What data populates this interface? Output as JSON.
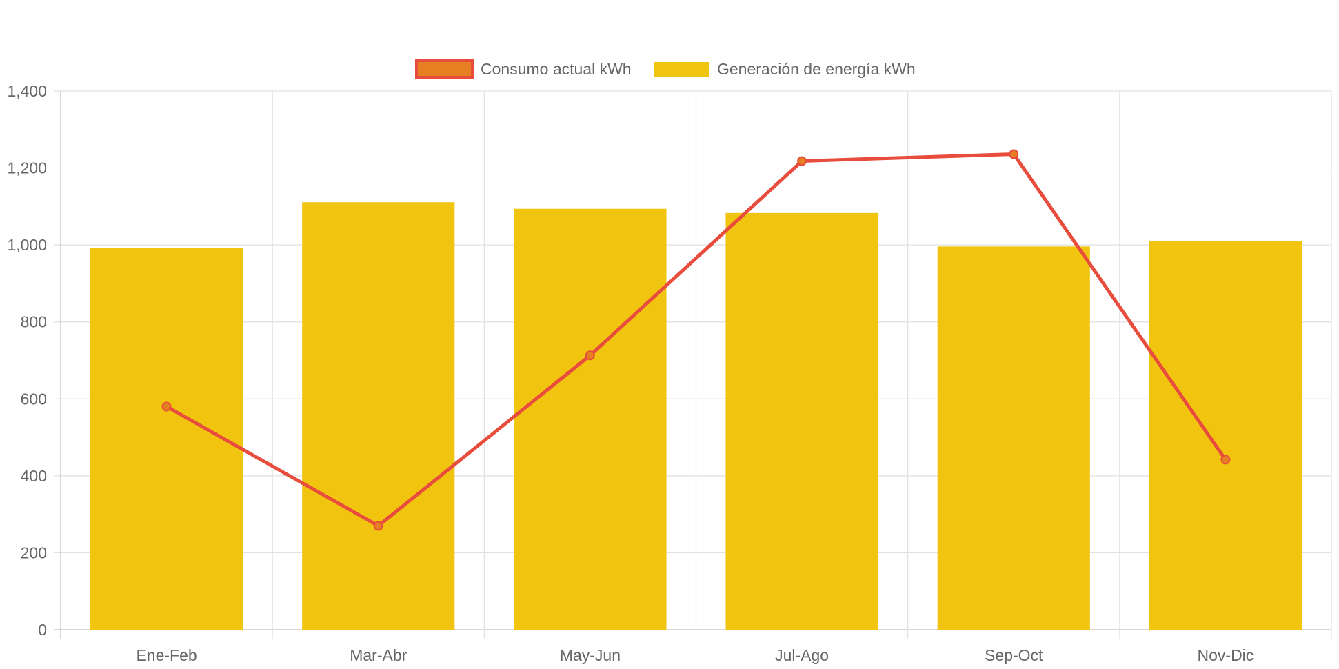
{
  "chart_data": {
    "type": "bar",
    "categories": [
      "Ene-Feb",
      "Mar-Abr",
      "May-Jun",
      "Jul-Ago",
      "Sep-Oct",
      "Nov-Dic"
    ],
    "series": [
      {
        "name": "Consumo actual kWh",
        "type": "line",
        "values": [
          580,
          270,
          713,
          1218,
          1236,
          442
        ],
        "color": "#e74c3c",
        "point_color": "#e67e22"
      },
      {
        "name": "Generación de energía kWh",
        "type": "bar",
        "values": [
          992,
          1111,
          1094,
          1083,
          996,
          1011
        ],
        "color": "#f1c40f"
      }
    ],
    "ylim": [
      0,
      1400
    ],
    "yticks": [
      0,
      200,
      400,
      600,
      800,
      1000,
      1200,
      1400
    ],
    "ytick_labels": [
      "0",
      "200",
      "400",
      "600",
      "800",
      "1,000",
      "1,200",
      "1,400"
    ],
    "grid": true,
    "legend": "top-center"
  }
}
